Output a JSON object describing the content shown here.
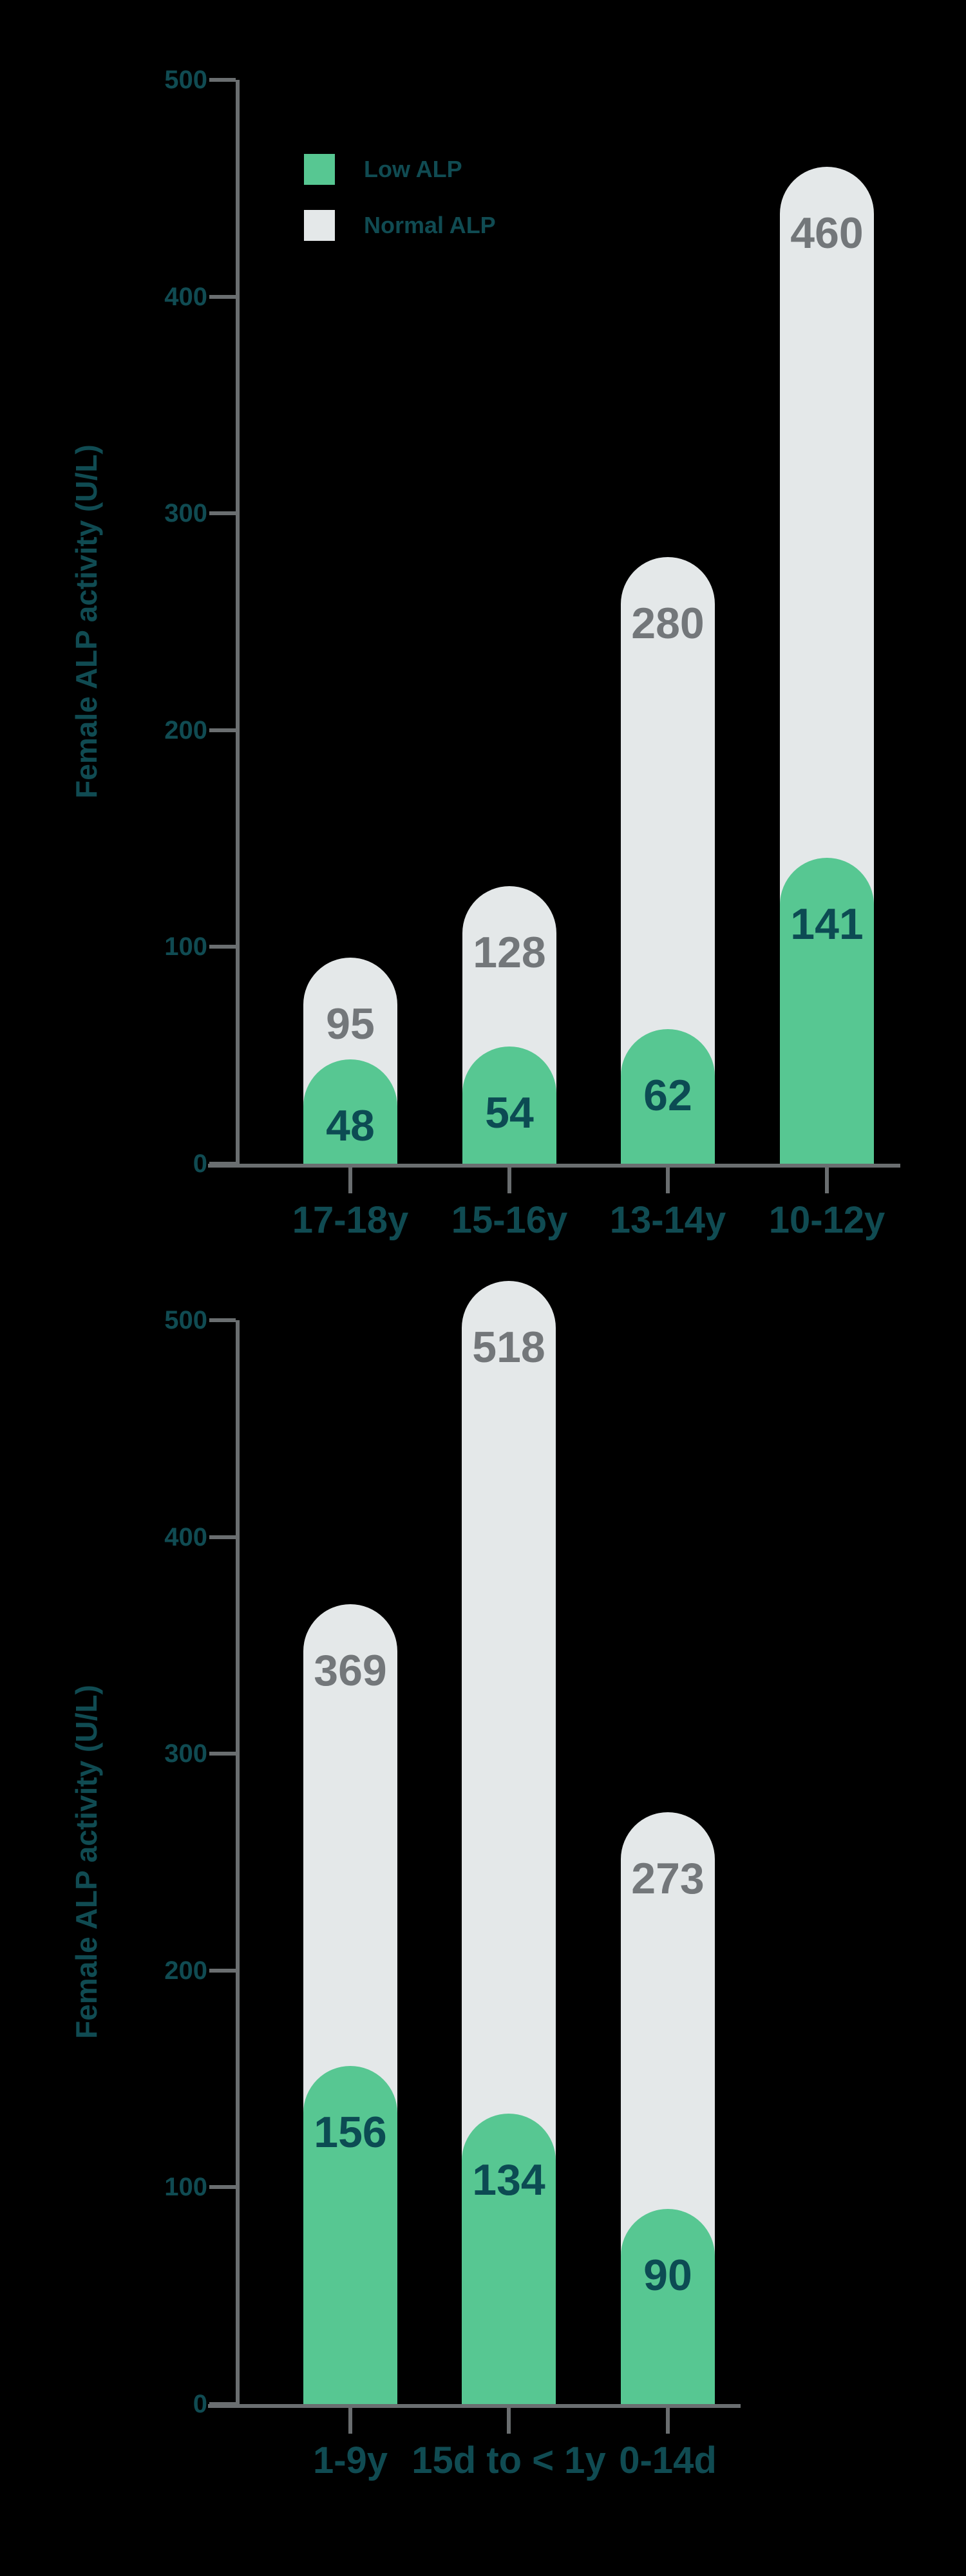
{
  "colors": {
    "background": "#000000",
    "axis_line": "#6A6E70",
    "axis_text": "#104B52",
    "low_bar": "#57C792",
    "normal_bar": "#E4E8E9",
    "value_on_normal": "#73777A",
    "value_on_low": "#0C4B53"
  },
  "chart_data": [
    {
      "type": "bar",
      "title": "",
      "xlabel": "",
      "ylabel": "Female ALP activity (U/L)",
      "categories": [
        "17-18y",
        "15-16y",
        "13-14y",
        "10-12y"
      ],
      "series": [
        {
          "name": "Normal ALP",
          "values": [
            95,
            128,
            280,
            460
          ],
          "color": "#E4E8E9"
        },
        {
          "name": "Low ALP",
          "values": [
            48,
            54,
            62,
            141
          ],
          "color": "#57C792"
        }
      ],
      "ylim": [
        0,
        500
      ],
      "y_ticks": [
        500,
        400,
        300,
        200,
        100,
        0
      ],
      "grid": false,
      "legend_position": "inside-top-left"
    },
    {
      "type": "bar",
      "title": "",
      "xlabel": "",
      "ylabel": "Female ALP activity (U/L)",
      "categories": [
        "1-9y",
        "15d to < 1y",
        "0-14d"
      ],
      "series": [
        {
          "name": "Normal ALP",
          "values": [
            369,
            518,
            273
          ],
          "color": "#E4E8E9"
        },
        {
          "name": "Low ALP",
          "values": [
            156,
            134,
            90
          ],
          "color": "#57C792"
        }
      ],
      "ylim": [
        0,
        500
      ],
      "y_ticks": [
        500,
        400,
        300,
        200,
        100,
        0
      ],
      "grid": false,
      "legend_position": "none"
    }
  ]
}
